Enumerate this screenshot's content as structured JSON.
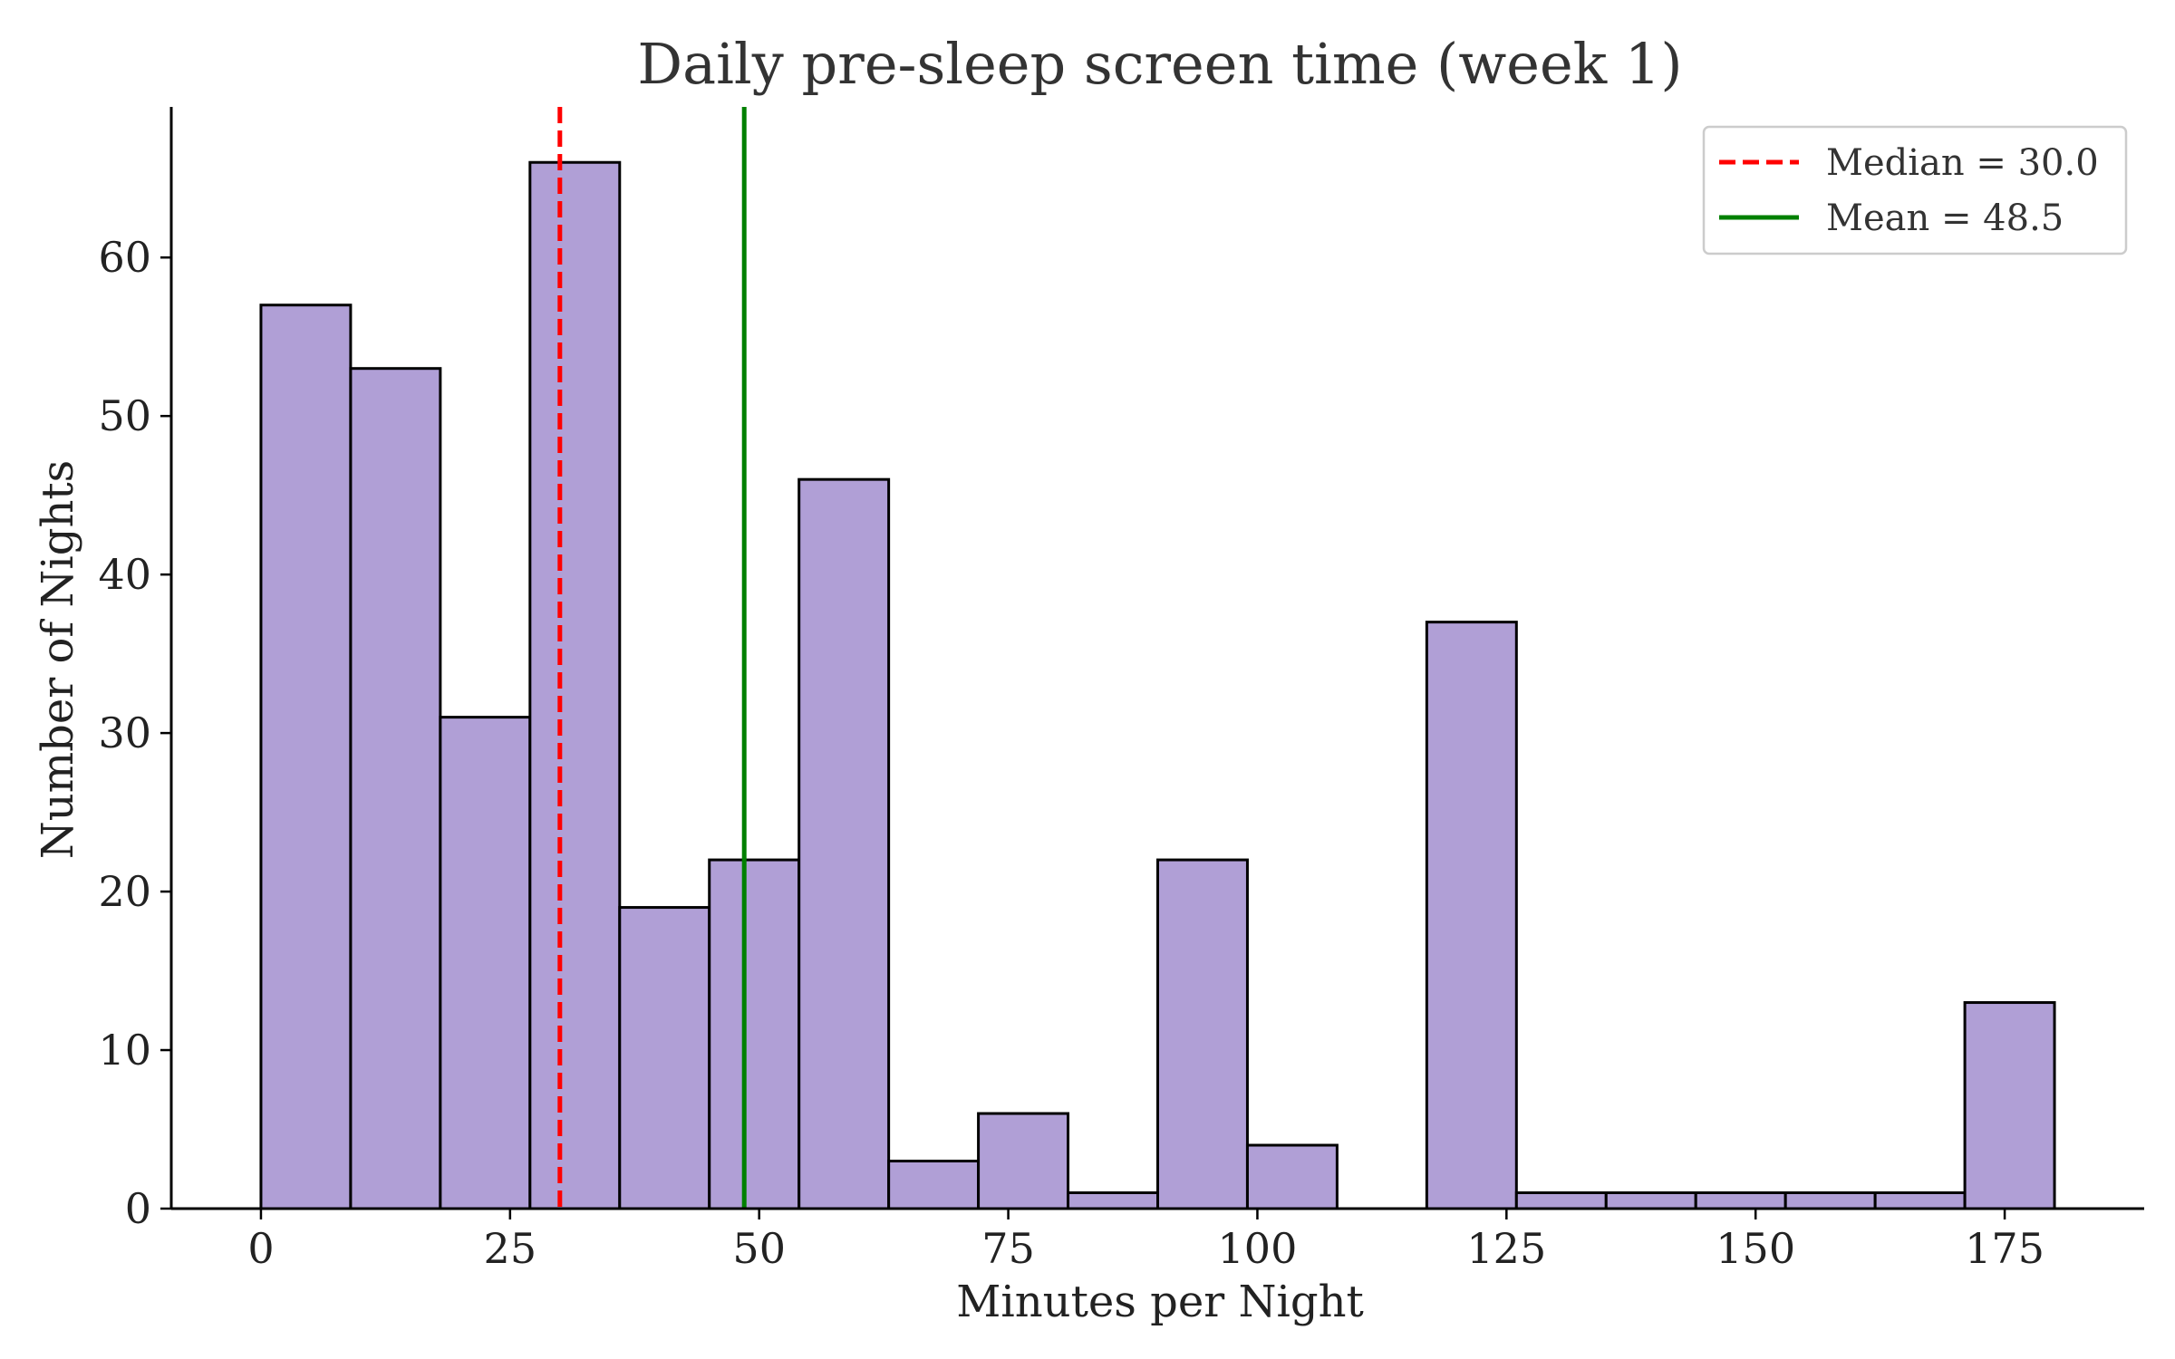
{
  "chart_data": {
    "type": "bar",
    "title": "Daily pre-sleep screen time (week 1)",
    "xlabel": "Minutes per Night",
    "ylabel": "Number of Nights",
    "xlim": [
      -9,
      189
    ],
    "ylim": [
      0,
      69.5
    ],
    "xticks": [
      "0",
      "25",
      "50",
      "75",
      "100",
      "125",
      "150",
      "175"
    ],
    "xtick_values": [
      0,
      25,
      50,
      75,
      100,
      125,
      150,
      175
    ],
    "yticks": [
      "0",
      "10",
      "20",
      "30",
      "40",
      "50",
      "60"
    ],
    "ytick_values": [
      0,
      10,
      20,
      30,
      40,
      50,
      60
    ],
    "bin_width": 9,
    "bin_starts": [
      0,
      9,
      18,
      27,
      36,
      45,
      54,
      63,
      72,
      81,
      90,
      99,
      108,
      117,
      126,
      135,
      144,
      153,
      162,
      171
    ],
    "values": [
      57,
      53,
      31,
      66,
      19,
      22,
      46,
      3,
      6,
      1,
      22,
      4,
      0,
      37,
      1,
      1,
      1,
      1,
      1,
      13
    ],
    "bar_color": "#b09fd6",
    "edge_color": "#000000",
    "grid": false,
    "reference_lines": [
      {
        "label": "Median = 30.0",
        "value": 30.0,
        "color": "#ff0000",
        "style": "dashed"
      },
      {
        "label": "Mean = 48.5",
        "value": 48.5,
        "color": "#008000",
        "style": "solid"
      }
    ],
    "legend_position": "top-right"
  }
}
